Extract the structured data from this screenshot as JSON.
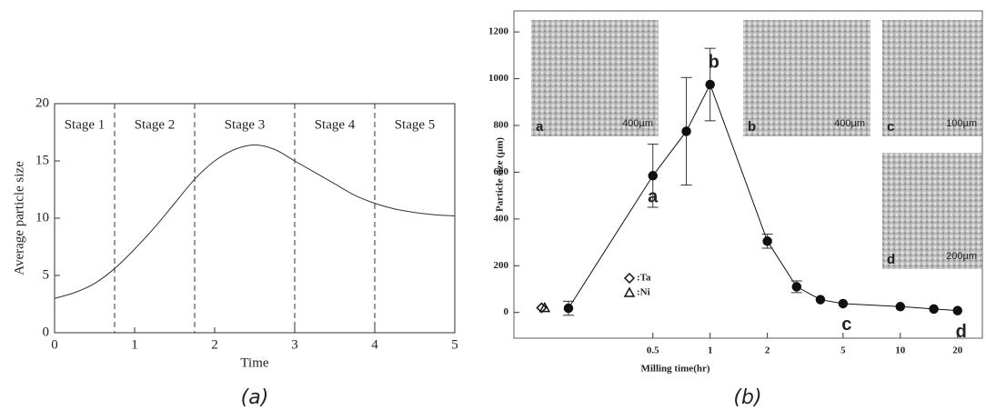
{
  "chart_data": [
    {
      "type": "line",
      "caption": "(a)",
      "x_label": "Time",
      "y_label": "Average particle size",
      "x": [
        0,
        0.25,
        0.5,
        0.75,
        1,
        1.25,
        1.5,
        1.75,
        2,
        2.25,
        2.5,
        2.75,
        3,
        3.25,
        3.5,
        3.75,
        4,
        4.25,
        4.5,
        4.75,
        5
      ],
      "series": [
        {
          "color": "#333333",
          "values": [
            3,
            3.5,
            4.3,
            5.6,
            7.3,
            9.2,
            11.3,
            13.4,
            15,
            16,
            16.4,
            16,
            15,
            14,
            13,
            12,
            11.3,
            10.8,
            10.5,
            10.3,
            10.2
          ]
        }
      ],
      "boundaries": [
        0.75,
        1.75,
        3,
        4
      ],
      "stages": [
        "Stage 1",
        "Stage 2",
        "Stage 3",
        "Stage 4",
        "Stage 5"
      ],
      "xlim": [
        0,
        5
      ],
      "xticks": [
        0,
        1,
        2,
        3,
        4,
        5
      ],
      "ylim": [
        0,
        20
      ],
      "yticks": [
        0,
        5,
        10,
        15,
        20
      ]
    },
    {
      "type": "scatter",
      "caption": "(b)",
      "x_label": "Milling time(hr)",
      "y_label": "Particle size (µm)",
      "log_x": true,
      "series": [
        {
          "color": "#111111",
          "marker": "circle",
          "line": true,
          "x": [
            0.18,
            0.5,
            0.75,
            1,
            2,
            2.85,
            3.8,
            5,
            10,
            15,
            20
          ],
          "values": [
            18,
            585,
            775,
            975,
            305,
            110,
            55,
            38,
            25,
            15,
            8
          ],
          "errors": [
            30,
            135,
            230,
            155,
            30,
            25,
            null,
            null,
            null,
            null,
            null
          ],
          "point_labels": [
            null,
            "a",
            null,
            "b",
            null,
            null,
            null,
            "c",
            null,
            null,
            "d"
          ]
        },
        {
          "name": ":Ta",
          "color": "#111111",
          "marker": "diamond",
          "x": [
            0.13
          ],
          "values": [
            20
          ]
        },
        {
          "name": ":Ni",
          "color": "#111111",
          "marker": "triangle",
          "x": [
            0.135
          ],
          "values": [
            20
          ]
        }
      ],
      "insets": [
        {
          "letter": "a",
          "scale": "400µm"
        },
        {
          "letter": "b",
          "scale": "400µm"
        },
        {
          "letter": "c",
          "scale": "100µm"
        },
        {
          "letter": "d",
          "scale": "200µm"
        }
      ],
      "xlim": [
        0.093,
        27
      ],
      "xticks": [
        0.5,
        1,
        2,
        5,
        10,
        20
      ],
      "ylim": [
        -110,
        1290
      ],
      "yticks": [
        0,
        200,
        400,
        600,
        800,
        1000,
        1200
      ]
    }
  ]
}
